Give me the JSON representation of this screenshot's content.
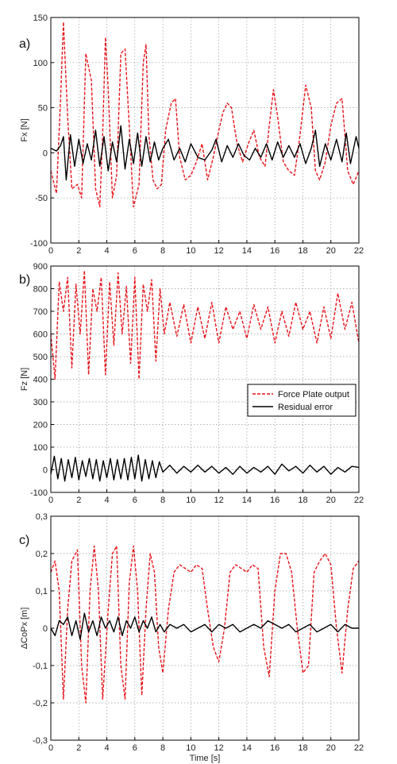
{
  "chart_data": [
    {
      "type": "line",
      "panel_label": "a)",
      "ylabel": "Fx [N]",
      "xlabel": "",
      "xlim": [
        0,
        22
      ],
      "ylim": [
        -100,
        150
      ],
      "xticks": [
        0,
        2,
        4,
        6,
        8,
        10,
        12,
        14,
        16,
        18,
        20,
        22
      ],
      "yticks": [
        -100,
        -50,
        0,
        50,
        100,
        150
      ],
      "ytick_labels": [
        "-100",
        "-50",
        "0",
        "50",
        "100",
        "150"
      ],
      "grid": true,
      "series": [
        {
          "name": "Force Plate output",
          "color": "#e8141b",
          "style": "dashed",
          "x": [
            0.0,
            0.4,
            0.7,
            0.9,
            1.2,
            1.5,
            1.9,
            2.2,
            2.5,
            2.9,
            3.2,
            3.5,
            3.7,
            3.9,
            4.1,
            4.4,
            4.7,
            5.0,
            5.3,
            5.6,
            5.9,
            6.3,
            6.6,
            6.8,
            7.0,
            7.3,
            7.6,
            7.9,
            8.2,
            8.6,
            8.9,
            9.2,
            9.6,
            10.0,
            10.4,
            10.8,
            11.2,
            11.6,
            12.0,
            12.3,
            12.6,
            12.9,
            13.3,
            13.7,
            14.1,
            14.5,
            14.9,
            15.3,
            15.6,
            15.9,
            16.2,
            16.6,
            17.0,
            17.4,
            17.8,
            18.2,
            18.6,
            18.9,
            19.2,
            19.6,
            20.0,
            20.4,
            20.8,
            21.2,
            21.6,
            22.0
          ],
          "y": [
            -20,
            -45,
            60,
            145,
            40,
            -40,
            -35,
            -50,
            110,
            80,
            -40,
            -60,
            20,
            128,
            70,
            -50,
            -25,
            110,
            115,
            30,
            -60,
            -35,
            100,
            120,
            20,
            -30,
            -40,
            -35,
            25,
            55,
            60,
            -5,
            -30,
            -25,
            -10,
            10,
            -30,
            -5,
            25,
            45,
            55,
            50,
            10,
            -10,
            10,
            25,
            -5,
            -15,
            30,
            70,
            40,
            -10,
            -20,
            -25,
            20,
            75,
            50,
            -20,
            -30,
            -10,
            30,
            55,
            60,
            -20,
            -35,
            -20
          ]
        },
        {
          "name": "Residual error",
          "color": "#000000",
          "style": "solid",
          "x": [
            0.0,
            0.4,
            0.7,
            0.9,
            1.1,
            1.4,
            1.7,
            2.0,
            2.3,
            2.6,
            2.9,
            3.2,
            3.5,
            3.8,
            4.1,
            4.4,
            4.7,
            5.0,
            5.3,
            5.6,
            5.9,
            6.2,
            6.5,
            6.8,
            7.1,
            7.4,
            7.7,
            8.0,
            8.4,
            8.8,
            9.2,
            9.6,
            10.0,
            10.5,
            11.0,
            11.5,
            11.8,
            12.2,
            12.6,
            13.0,
            13.4,
            13.8,
            14.2,
            14.6,
            15.0,
            15.4,
            15.8,
            16.2,
            16.6,
            17.0,
            17.4,
            17.8,
            18.2,
            18.6,
            18.9,
            19.2,
            19.6,
            20.0,
            20.4,
            20.8,
            21.1,
            21.4,
            21.8,
            22.0
          ],
          "y": [
            5,
            2,
            8,
            18,
            -30,
            20,
            -15,
            15,
            -12,
            10,
            -8,
            25,
            -15,
            18,
            -20,
            12,
            -10,
            30,
            -18,
            15,
            -12,
            22,
            -15,
            18,
            -10,
            12,
            -8,
            5,
            15,
            -8,
            5,
            -10,
            10,
            -5,
            -8,
            3,
            15,
            -10,
            8,
            -5,
            10,
            -3,
            -8,
            5,
            -5,
            10,
            -8,
            12,
            -5,
            8,
            -5,
            10,
            -12,
            5,
            25,
            -15,
            10,
            -8,
            15,
            -10,
            22,
            -12,
            18,
            5
          ]
        }
      ]
    },
    {
      "type": "line",
      "panel_label": "b)",
      "ylabel": "Fz [N]",
      "xlabel": "",
      "xlim": [
        0,
        22
      ],
      "ylim": [
        -100,
        900
      ],
      "xticks": [
        0,
        2,
        4,
        6,
        8,
        10,
        12,
        14,
        16,
        18,
        20,
        22
      ],
      "yticks": [
        -100,
        0,
        100,
        200,
        300,
        400,
        500,
        600,
        700,
        800,
        900
      ],
      "ytick_labels": [
        "-100",
        "0",
        "100",
        "200",
        "300",
        "400",
        "500",
        "600",
        "700",
        "800",
        "900"
      ],
      "grid": true,
      "legend": {
        "position": "right-middle",
        "entries": [
          "Force Plate output",
          "Residual error"
        ]
      },
      "series": [
        {
          "name": "Force Plate output",
          "color": "#e8141b",
          "style": "dashed",
          "x": [
            0.0,
            0.3,
            0.6,
            0.9,
            1.2,
            1.5,
            1.8,
            2.1,
            2.4,
            2.7,
            3.0,
            3.3,
            3.6,
            3.9,
            4.2,
            4.5,
            4.8,
            5.1,
            5.4,
            5.7,
            6.0,
            6.3,
            6.6,
            6.9,
            7.2,
            7.5,
            7.8,
            8.1,
            8.5,
            9.0,
            9.5,
            10.0,
            10.5,
            11.0,
            11.5,
            12.0,
            12.5,
            13.0,
            13.5,
            14.0,
            14.5,
            15.0,
            15.5,
            16.0,
            16.5,
            17.0,
            17.5,
            18.0,
            18.5,
            19.0,
            19.5,
            20.0,
            20.5,
            21.0,
            21.5,
            22.0
          ],
          "y": [
            600,
            400,
            830,
            700,
            850,
            450,
            820,
            600,
            880,
            420,
            800,
            700,
            850,
            420,
            830,
            550,
            870,
            600,
            810,
            470,
            850,
            400,
            820,
            700,
            840,
            480,
            800,
            600,
            740,
            590,
            730,
            560,
            720,
            580,
            740,
            560,
            720,
            620,
            700,
            580,
            730,
            620,
            720,
            560,
            700,
            590,
            740,
            620,
            700,
            560,
            720,
            580,
            780,
            620,
            740,
            560
          ]
        },
        {
          "name": "Residual error",
          "color": "#000000",
          "style": "solid",
          "x": [
            0.0,
            0.25,
            0.5,
            0.75,
            1.0,
            1.25,
            1.5,
            1.75,
            2.0,
            2.25,
            2.5,
            2.75,
            3.0,
            3.25,
            3.5,
            3.75,
            4.0,
            4.25,
            4.5,
            4.75,
            5.0,
            5.25,
            5.5,
            5.75,
            6.0,
            6.25,
            6.5,
            6.75,
            7.0,
            7.25,
            7.5,
            7.75,
            8.0,
            8.5,
            9.0,
            9.5,
            10.0,
            10.5,
            11.0,
            11.5,
            12.0,
            12.5,
            13.0,
            13.5,
            14.0,
            14.5,
            15.0,
            15.5,
            16.0,
            16.5,
            17.0,
            17.5,
            18.0,
            18.5,
            19.0,
            19.5,
            20.0,
            20.5,
            21.0,
            21.5,
            22.0
          ],
          "y": [
            -20,
            60,
            -40,
            50,
            -50,
            45,
            -35,
            55,
            -45,
            40,
            -30,
            50,
            -40,
            45,
            -50,
            40,
            -35,
            50,
            -45,
            45,
            -40,
            50,
            -45,
            55,
            -40,
            65,
            -50,
            45,
            -40,
            40,
            -35,
            35,
            -10,
            20,
            -15,
            15,
            -10,
            20,
            -10,
            15,
            -15,
            10,
            -20,
            15,
            -15,
            10,
            -10,
            15,
            -20,
            25,
            -5,
            15,
            -15,
            20,
            -10,
            15,
            -20,
            10,
            -10,
            15,
            10
          ]
        }
      ]
    },
    {
      "type": "line",
      "panel_label": "c)",
      "ylabel": "ΔCoPx [m]",
      "xlabel": "Time [s]",
      "xlim": [
        0,
        22
      ],
      "ylim": [
        -0.3,
        0.3
      ],
      "xticks": [
        0,
        2,
        4,
        6,
        8,
        10,
        12,
        14,
        16,
        18,
        20,
        22
      ],
      "yticks": [
        -0.3,
        -0.2,
        -0.1,
        0,
        0.1,
        0.2,
        0.3
      ],
      "ytick_labels": [
        "-0,3",
        "-0,2",
        "-0,1",
        "0",
        "0,1",
        "0,2",
        "0,3"
      ],
      "grid": true,
      "series": [
        {
          "name": "Force Plate output",
          "color": "#e8141b",
          "style": "dashed",
          "x": [
            0.0,
            0.3,
            0.6,
            0.9,
            1.2,
            1.5,
            1.9,
            2.2,
            2.5,
            2.8,
            3.1,
            3.4,
            3.7,
            4.1,
            4.4,
            4.7,
            5.0,
            5.3,
            5.6,
            5.9,
            6.2,
            6.5,
            6.8,
            7.1,
            7.4,
            7.7,
            8.0,
            8.4,
            8.8,
            9.2,
            9.6,
            10.0,
            10.4,
            10.8,
            11.2,
            11.6,
            12.0,
            12.4,
            12.8,
            13.2,
            13.6,
            14.0,
            14.4,
            14.8,
            15.2,
            15.6,
            16.0,
            16.4,
            16.8,
            17.2,
            17.6,
            18.0,
            18.4,
            18.8,
            19.2,
            19.6,
            20.0,
            20.4,
            20.8,
            21.2,
            21.6,
            22.0
          ],
          "y": [
            0.15,
            0.18,
            0.1,
            -0.19,
            0.05,
            0.18,
            0.21,
            -0.1,
            -0.2,
            0.1,
            0.22,
            0.1,
            -0.19,
            0.05,
            0.2,
            0.22,
            -0.1,
            -0.19,
            0.12,
            0.22,
            0.1,
            -0.18,
            0.05,
            0.2,
            0.15,
            -0.05,
            -0.12,
            0.05,
            0.15,
            0.17,
            0.16,
            0.15,
            0.17,
            0.16,
            0.05,
            -0.05,
            -0.09,
            0.0,
            0.15,
            0.17,
            0.16,
            0.15,
            0.17,
            0.16,
            -0.05,
            -0.13,
            0.1,
            0.2,
            0.2,
            0.15,
            0.0,
            -0.12,
            -0.1,
            0.15,
            0.18,
            0.2,
            0.17,
            0.0,
            -0.12,
            0.05,
            0.16,
            0.18
          ]
        },
        {
          "name": "Residual error",
          "color": "#000000",
          "style": "solid",
          "x": [
            0.0,
            0.3,
            0.6,
            0.9,
            1.2,
            1.5,
            1.8,
            2.1,
            2.4,
            2.7,
            3.0,
            3.3,
            3.6,
            3.9,
            4.2,
            4.5,
            4.8,
            5.1,
            5.4,
            5.7,
            6.0,
            6.3,
            6.6,
            6.9,
            7.2,
            7.5,
            7.8,
            8.1,
            8.5,
            9.0,
            9.5,
            10.0,
            10.5,
            11.0,
            11.5,
            12.0,
            12.5,
            13.0,
            13.5,
            14.0,
            14.5,
            15.0,
            15.5,
            16.0,
            16.5,
            17.0,
            17.5,
            18.0,
            18.5,
            19.0,
            19.5,
            20.0,
            20.5,
            21.0,
            21.5,
            22.0
          ],
          "y": [
            0.0,
            -0.02,
            0.02,
            0.01,
            0.03,
            -0.02,
            0.02,
            -0.03,
            0.04,
            -0.01,
            0.02,
            -0.02,
            0.03,
            0.0,
            0.02,
            -0.01,
            0.03,
            -0.02,
            0.02,
            0.0,
            0.03,
            -0.01,
            0.02,
            0.0,
            0.03,
            -0.01,
            0.01,
            -0.01,
            0.01,
            0.0,
            0.01,
            -0.01,
            0.0,
            0.01,
            -0.01,
            0.01,
            0.0,
            0.01,
            -0.01,
            0.0,
            0.01,
            0.0,
            0.02,
            0.01,
            0.0,
            0.01,
            -0.01,
            0.0,
            0.01,
            -0.01,
            0.0,
            0.01,
            -0.01,
            0.01,
            0.0,
            0.0
          ]
        }
      ]
    }
  ]
}
